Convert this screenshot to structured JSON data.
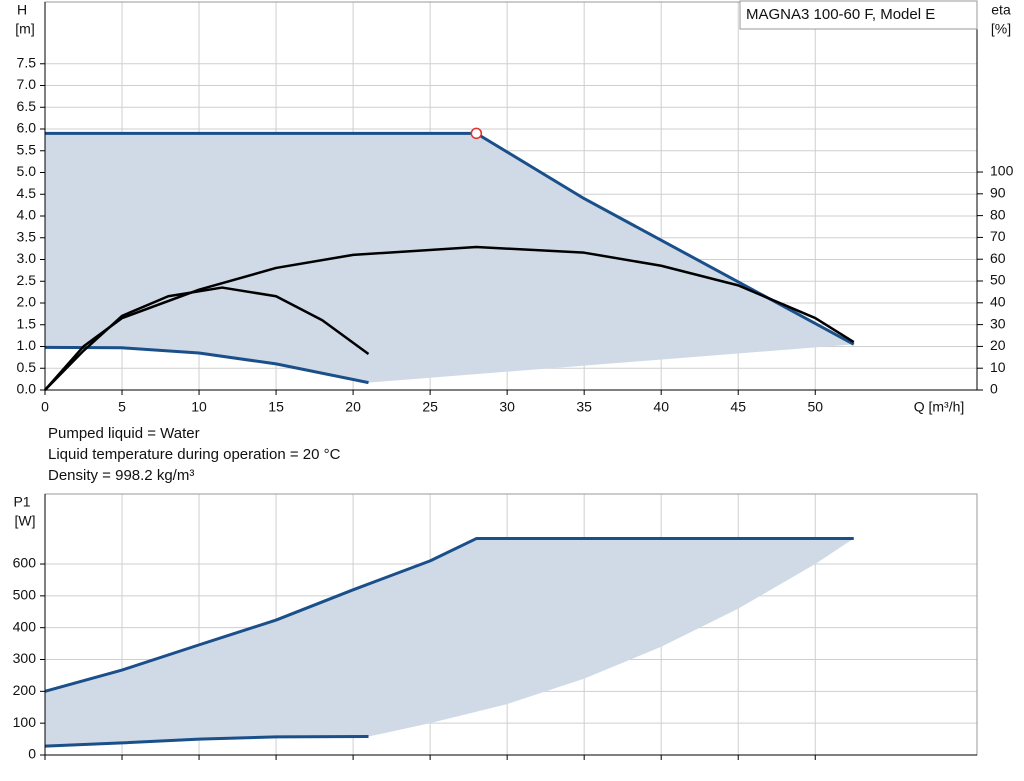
{
  "chart_data": [
    {
      "type": "line",
      "title": "MAGNA3 100-60 F, Model E",
      "y_label": "H",
      "y_unit": "[m]",
      "x_label": "Q [m³/h]",
      "y2_label": "eta",
      "y2_unit": "[%]",
      "xlim": [
        0,
        60.5
      ],
      "xticks": [
        0,
        5,
        10,
        15,
        20,
        25,
        30,
        35,
        40,
        45,
        50
      ],
      "x_tick_labels": true,
      "ylim": [
        0,
        8.92
      ],
      "yticks": [
        {
          "value": 0,
          "label": "0.0"
        },
        0.5,
        {
          "value": 1,
          "label": "1.0"
        },
        1.5,
        {
          "value": 2,
          "label": "2.0"
        },
        2.5,
        {
          "value": 3,
          "label": "3.0"
        },
        3.5,
        {
          "value": 4,
          "label": "4.0"
        },
        4.5,
        {
          "value": 5,
          "label": "5.0"
        },
        5.5,
        {
          "value": 6,
          "label": "6.0"
        },
        6.5,
        {
          "value": 7,
          "label": "7.0"
        },
        7.5
      ],
      "y2lim": [
        0,
        178
      ],
      "y2ticks": [
        0,
        10,
        20,
        30,
        40,
        50,
        60,
        70,
        80,
        90,
        100
      ],
      "grid": true,
      "area_color": "#cfdae6",
      "area_edge": {
        "x": [],
        "values": []
      },
      "series": [
        {
          "color": "#1a4f8a",
          "x": [
            0,
            28,
            35,
            52.5
          ],
          "values": [
            5.9,
            5.9,
            4.4,
            1.05
          ]
        },
        {
          "color": "#1a4f8a",
          "x": [
            0,
            5,
            10,
            15,
            21
          ],
          "values": [
            0.98,
            0.97,
            0.85,
            0.6,
            0.17
          ]
        },
        {
          "color": "#000000",
          "axis": "y2",
          "x": [
            0,
            2.5,
            5,
            10,
            15,
            20,
            28,
            35,
            40,
            45,
            50,
            52.5
          ],
          "values": [
            0,
            20,
            33,
            46,
            56,
            62,
            65.6,
            63,
            57,
            48,
            33,
            22
          ]
        },
        {
          "color": "#000000",
          "axis": "y2",
          "x": [
            0,
            2.5,
            5,
            8,
            11.5,
            15,
            18,
            21
          ],
          "values": [
            0,
            18,
            34,
            43,
            47,
            43,
            32,
            16.5
          ]
        }
      ],
      "marker": {
        "x": 28,
        "y": 5.9,
        "color": "#e03030"
      }
    },
    {
      "type": "line",
      "y_label": "P1",
      "y_unit": "[W]",
      "xlim": [
        0,
        60.5
      ],
      "xticks": [
        0,
        5,
        10,
        15,
        20,
        25,
        30,
        35,
        40,
        45,
        50
      ],
      "x_tick_labels": false,
      "ylim": [
        0,
        820
      ],
      "yticks": [
        0,
        100,
        200,
        300,
        400,
        500,
        600
      ],
      "grid": true,
      "area_color": "#cfdae6",
      "area_edge": {
        "x": [
          25,
          30,
          35,
          40,
          45,
          50
        ],
        "values": [
          100,
          160,
          240,
          340,
          460,
          600
        ]
      },
      "series": [
        {
          "color": "#1a4f8a",
          "x": [
            0,
            5,
            10,
            15,
            20,
            25,
            28,
            52.5
          ],
          "values": [
            200,
            267,
            346,
            424,
            519,
            610,
            680,
            680
          ]
        },
        {
          "color": "#1a4f8a",
          "x": [
            0,
            5,
            10,
            15,
            21
          ],
          "values": [
            28,
            38,
            50,
            57,
            58
          ]
        }
      ]
    }
  ],
  "notes": [
    "Pumped liquid = Water",
    "Liquid temperature during operation = 20 °C",
    "Density = 998.2 kg/m³"
  ]
}
